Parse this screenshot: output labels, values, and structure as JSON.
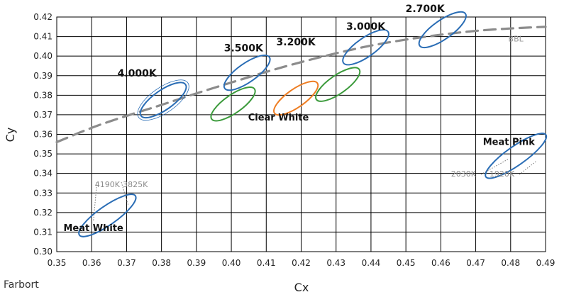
{
  "brand": "Farbort",
  "colors": {
    "blue": "#2a6db5",
    "green": "#3b9a3b",
    "orange": "#ee7d22",
    "bbl": "#8c8c8c",
    "grid": "#000000"
  },
  "chart_data": {
    "type": "scatter",
    "xlabel": "Cx",
    "ylabel": "Cy",
    "xlim": [
      0.35,
      0.49
    ],
    "ylim": [
      0.3,
      0.42
    ],
    "grid": true,
    "x_ticks": [
      "0.35",
      "0.36",
      "0.37",
      "0.38",
      "0.39",
      "0.40",
      "0.41",
      "0.42",
      "0.43",
      "0.44",
      "0.45",
      "0.46",
      "0.47",
      "0.48",
      "0.49"
    ],
    "y_ticks": [
      "0.30",
      "0.31",
      "0.32",
      "0.33",
      "0.34",
      "0.35",
      "0.36",
      "0.37",
      "0.38",
      "0.39",
      "0.40",
      "0.41",
      "0.42"
    ],
    "bbl": {
      "label": "BBL",
      "points": [
        [
          0.35,
          0.356
        ],
        [
          0.36,
          0.3635
        ],
        [
          0.37,
          0.3695
        ],
        [
          0.38,
          0.375
        ],
        [
          0.39,
          0.381
        ],
        [
          0.4,
          0.3865
        ],
        [
          0.41,
          0.392
        ],
        [
          0.42,
          0.397
        ],
        [
          0.43,
          0.4015
        ],
        [
          0.44,
          0.4055
        ],
        [
          0.45,
          0.4085
        ],
        [
          0.46,
          0.411
        ],
        [
          0.47,
          0.413
        ],
        [
          0.48,
          0.4142
        ],
        [
          0.49,
          0.415
        ]
      ]
    },
    "ellipses": [
      {
        "name": "4.000K",
        "color": "blue",
        "cx": 0.3805,
        "cy": 0.3775,
        "rx": 0.0078,
        "ry": 0.0028,
        "angle": 0.0285,
        "double": true
      },
      {
        "name": "3.500K",
        "color": "blue",
        "cx": 0.4045,
        "cy": 0.3915,
        "rx": 0.0078,
        "ry": 0.0027,
        "angle": 0.0285
      },
      {
        "name": "3.000K",
        "color": "blue",
        "cx": 0.4385,
        "cy": 0.4045,
        "rx": 0.0078,
        "ry": 0.0027,
        "angle": 0.0285
      },
      {
        "name": "2.700K",
        "color": "blue",
        "cx": 0.4605,
        "cy": 0.4135,
        "rx": 0.008,
        "ry": 0.0027,
        "angle": 0.0285
      },
      {
        "name": "",
        "color": "green",
        "cx": 0.4005,
        "cy": 0.3755,
        "rx": 0.0075,
        "ry": 0.0026,
        "angle": 0.0285
      },
      {
        "name": "",
        "color": "orange",
        "cx": 0.4185,
        "cy": 0.3785,
        "rx": 0.0075,
        "ry": 0.0026,
        "angle": 0.0285
      },
      {
        "name": "",
        "color": "green",
        "cx": 0.4305,
        "cy": 0.3855,
        "rx": 0.0075,
        "ry": 0.0026,
        "angle": 0.0285
      },
      {
        "name": "Meat White",
        "color": "blue",
        "cx": 0.3645,
        "cy": 0.3185,
        "rx": 0.0098,
        "ry": 0.0027,
        "angle": 0.0285
      },
      {
        "name": "Meat Pink",
        "color": "blue",
        "cx": 0.4815,
        "cy": 0.349,
        "rx": 0.0105,
        "ry": 0.0027,
        "angle": 0.0285
      }
    ],
    "annotations": [
      {
        "text": "4.000K",
        "x": 0.373,
        "y": 0.3895,
        "style": "cct"
      },
      {
        "text": "3.500K",
        "x": 0.4035,
        "y": 0.4025,
        "style": "cct"
      },
      {
        "text": "3.200K",
        "x": 0.4185,
        "y": 0.4055,
        "style": "cct"
      },
      {
        "text": "3.000K",
        "x": 0.4385,
        "y": 0.4135,
        "style": "cct"
      },
      {
        "text": "2.700K",
        "x": 0.4555,
        "y": 0.4225,
        "style": "cct"
      },
      {
        "text": "Clear White",
        "x": 0.4135,
        "y": 0.367,
        "style": "region"
      },
      {
        "text": "Meat White",
        "x": 0.3605,
        "y": 0.3105,
        "style": "region"
      },
      {
        "text": "Meat Pink",
        "x": 0.4795,
        "y": 0.3545,
        "style": "region"
      },
      {
        "text": "4190K",
        "x": 0.3645,
        "y": 0.333,
        "style": "small"
      },
      {
        "text": "3825K",
        "x": 0.3725,
        "y": 0.333,
        "style": "small"
      },
      {
        "text": "2030K",
        "x": 0.4665,
        "y": 0.3385,
        "style": "small"
      },
      {
        "text": "1920K",
        "x": 0.4775,
        "y": 0.3385,
        "style": "small"
      },
      {
        "text": "BBL",
        "x": 0.4815,
        "y": 0.4075,
        "style": "bbl"
      }
    ],
    "dotted_lines": [
      [
        [
          0.3615,
          0.3355
        ],
        [
          0.3605,
          0.3155
        ]
      ],
      [
        [
          0.3685,
          0.3355
        ],
        [
          0.3705,
          0.3235
        ]
      ],
      [
        [
          0.4715,
          0.3395
        ],
        [
          0.4795,
          0.3475
        ]
      ],
      [
        [
          0.4825,
          0.3395
        ],
        [
          0.4875,
          0.3465
        ]
      ]
    ]
  }
}
